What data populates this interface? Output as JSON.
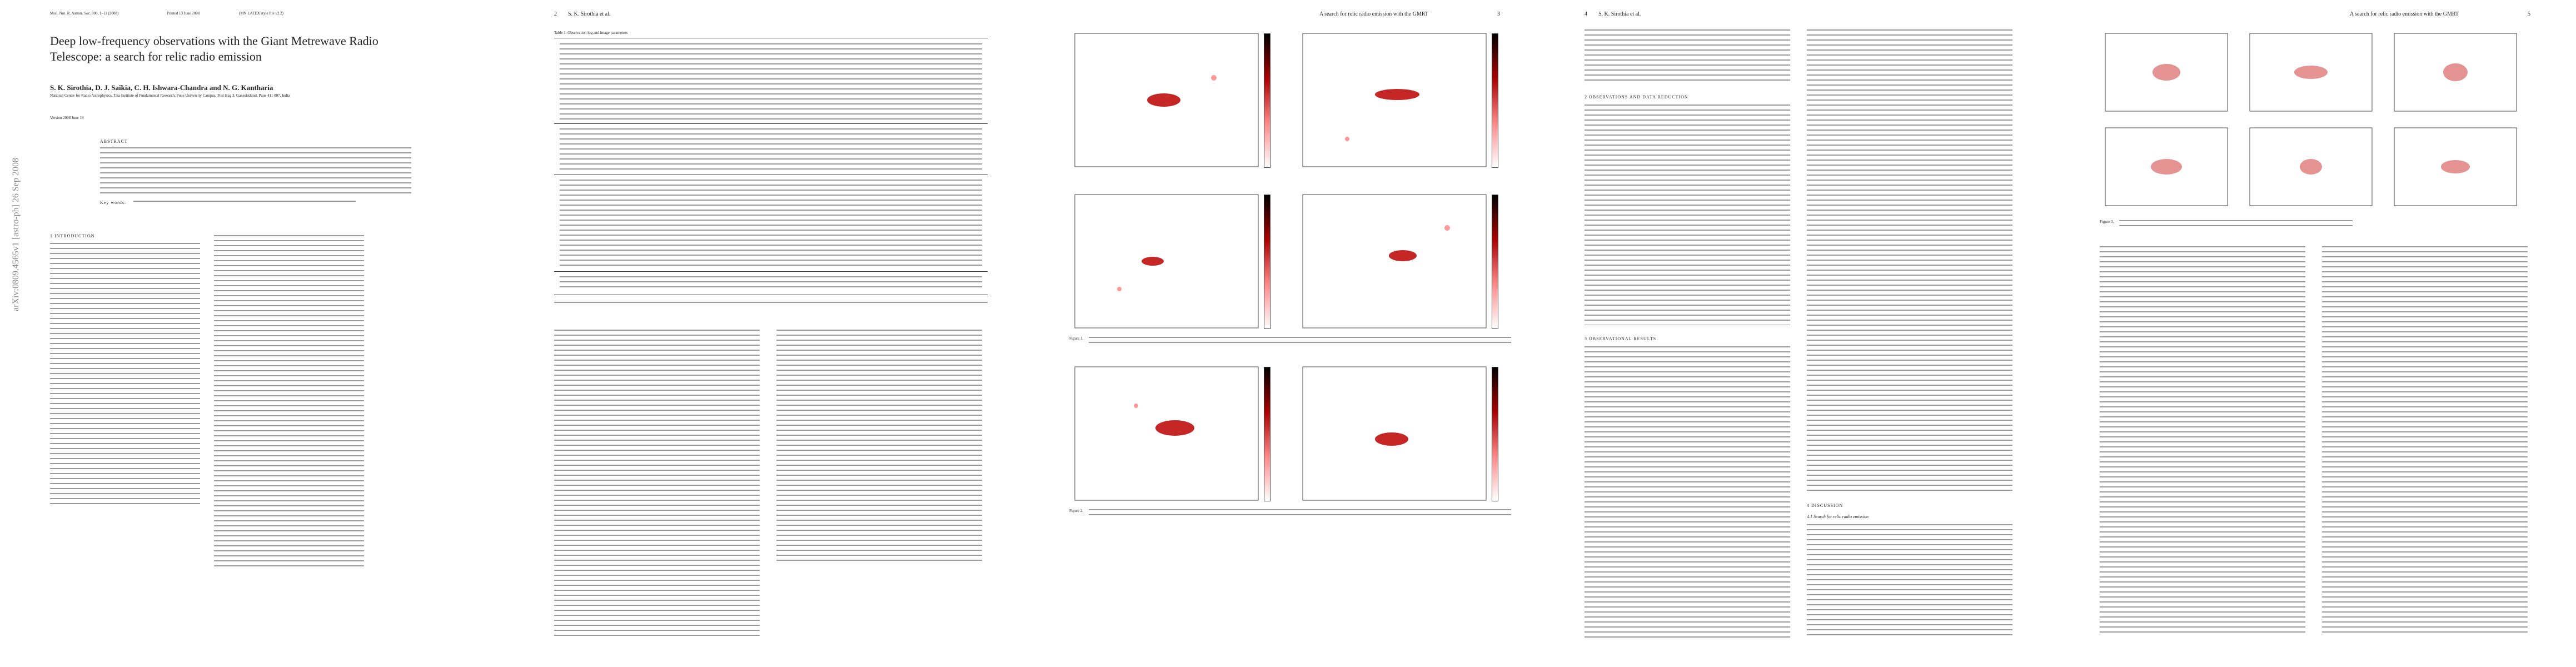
{
  "pages": [
    {
      "journal": "Mon. Not. R. Astron. Soc. 000, 1–11 (2008)",
      "printed": "Printed 13 June 2008",
      "style": "(MN LATEX style file v2.2)",
      "title": "Deep low-frequency observations with the Giant Metrewave Radio Telescope: a search for relic radio emission",
      "authors": "S. K. Sirothia, D. J. Saikia, C. H. Ishwara-Chandra and N. G. Kantharia",
      "affiliation": "National Centre for Radio Astrophysics, Tata Institute of Fundamental Research, Pune University Campus, Post Bag 3, Ganeshkhind, Pune 411 007, India",
      "accepted": "Version 2008 June 13",
      "abstract_heading": "ABSTRACT",
      "keywords_heading": "Key words:",
      "section": "1 INTRODUCTION",
      "stamp": "arXiv:0809.4565v1 [astro-ph] 26 Sep 2008"
    },
    {
      "number": "2",
      "running_head": "S. K. Sirothia et al.",
      "table_caption": "Table 1. Observation log and image parameters"
    },
    {
      "running_head": "A search for relic radio emission with the GMRT",
      "number": "3",
      "figure_1": "Figure 1.",
      "figure_2": "Figure 2."
    },
    {
      "number": "4",
      "running_head": "S. K. Sirothia et al.",
      "section_2": "2 OBSERVATIONS AND DATA REDUCTION",
      "section_3": "3 OBSERVATIONAL RESULTS",
      "section_4": "4 DISCUSSION",
      "subsection_4_1": "4.1 Search for relic radio emission"
    },
    {
      "running_head": "A search for relic radio emission with the GMRT",
      "number": "5",
      "figure_3": "Figure 3."
    }
  ]
}
